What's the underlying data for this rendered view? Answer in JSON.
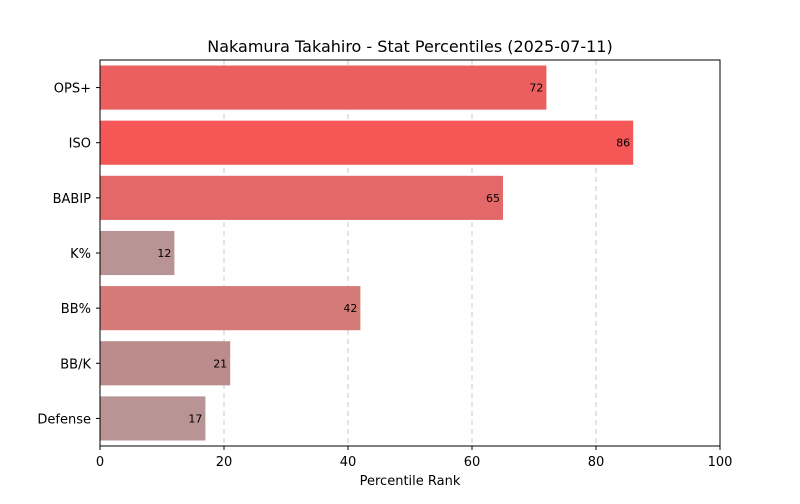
{
  "chart_data": {
    "type": "bar",
    "orientation": "horizontal",
    "title": "Nakamura Takahiro - Stat Percentiles (2025-07-11)",
    "xlabel": "Percentile Rank",
    "ylabel": "",
    "xlim": [
      0,
      100
    ],
    "xticks": [
      0,
      20,
      40,
      60,
      80,
      100
    ],
    "grid": "x-dashed",
    "legend": "none",
    "categories": [
      "OPS+",
      "ISO",
      "BABIP",
      "K%",
      "BB%",
      "BB/K",
      "Defense"
    ],
    "values": [
      72,
      86,
      65,
      12,
      42,
      21,
      17
    ],
    "colors": [
      "#eb5f5f",
      "#f55656",
      "#e36868",
      "#b89594",
      "#d47b78",
      "#bb8c8b",
      "#b89594"
    ],
    "data_labels": [
      "72",
      "86",
      "65",
      "12",
      "42",
      "21",
      "17"
    ]
  }
}
